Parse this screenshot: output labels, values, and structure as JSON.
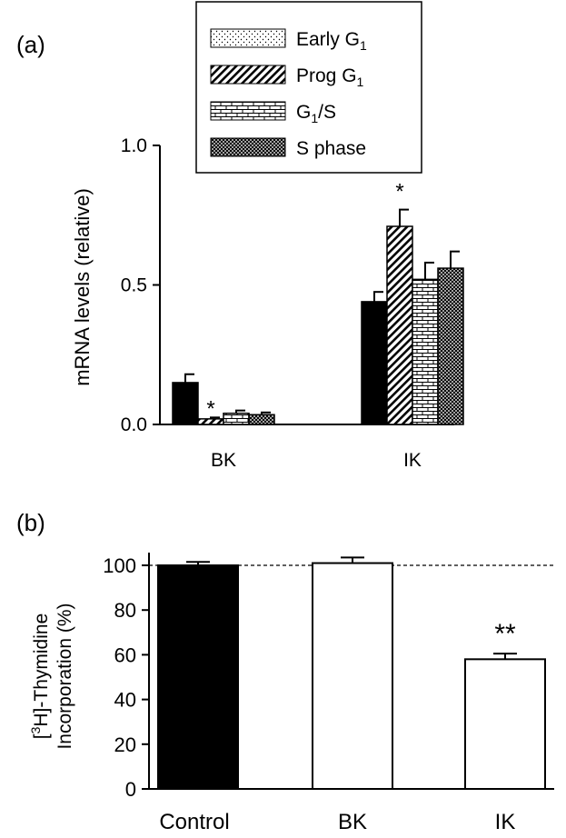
{
  "chart_data": [
    {
      "panel_label": "(a)",
      "type": "bar",
      "categories": [
        "BK",
        "IK"
      ],
      "series": [
        {
          "name": "Early G",
          "sub": "1",
          "values": [
            0.15,
            0.44
          ],
          "errors": [
            0.03,
            0.035
          ],
          "pattern": "solid-black"
        },
        {
          "name": "Prog G",
          "sub": "1",
          "values": [
            0.02,
            0.71
          ],
          "errors": [
            0.005,
            0.06
          ],
          "pattern": "diagonal"
        },
        {
          "name": "G",
          "sub": "1",
          "post": "/S",
          "values": [
            0.04,
            0.52
          ],
          "errors": [
            0.01,
            0.06
          ],
          "pattern": "brick"
        },
        {
          "name": "S phase",
          "sub": "",
          "values": [
            0.035,
            0.56
          ],
          "errors": [
            0.008,
            0.06
          ],
          "pattern": "crosshatch"
        }
      ],
      "significance": [
        {
          "category": "BK",
          "series": 1,
          "mark": "*"
        },
        {
          "category": "IK",
          "series": 1,
          "mark": "*"
        }
      ],
      "ylabel": "mRNA levels (relative)",
      "ylim": [
        0,
        1.0
      ],
      "yticks": [
        "0.0",
        "0.5",
        "1.0"
      ],
      "legend_position": "top"
    },
    {
      "panel_label": "(b)",
      "type": "bar",
      "categories": [
        "Control",
        "BK",
        "IK"
      ],
      "values": [
        100,
        101,
        58
      ],
      "errors": [
        1.5,
        2.5,
        2.5
      ],
      "fills": [
        "#000000",
        "#ffffff",
        "#ffffff"
      ],
      "significance": [
        {
          "category": "IK",
          "mark": "**"
        }
      ],
      "reference_line": 100,
      "ylabel_line1_pre": "[",
      "ylabel_line1_sup": "3",
      "ylabel_line1_post": "H]-Thymidine",
      "ylabel_line2": "Incorporation (%)",
      "ylim": [
        0,
        100
      ],
      "yticks": [
        "0",
        "20",
        "40",
        "60",
        "80",
        "100"
      ]
    }
  ]
}
